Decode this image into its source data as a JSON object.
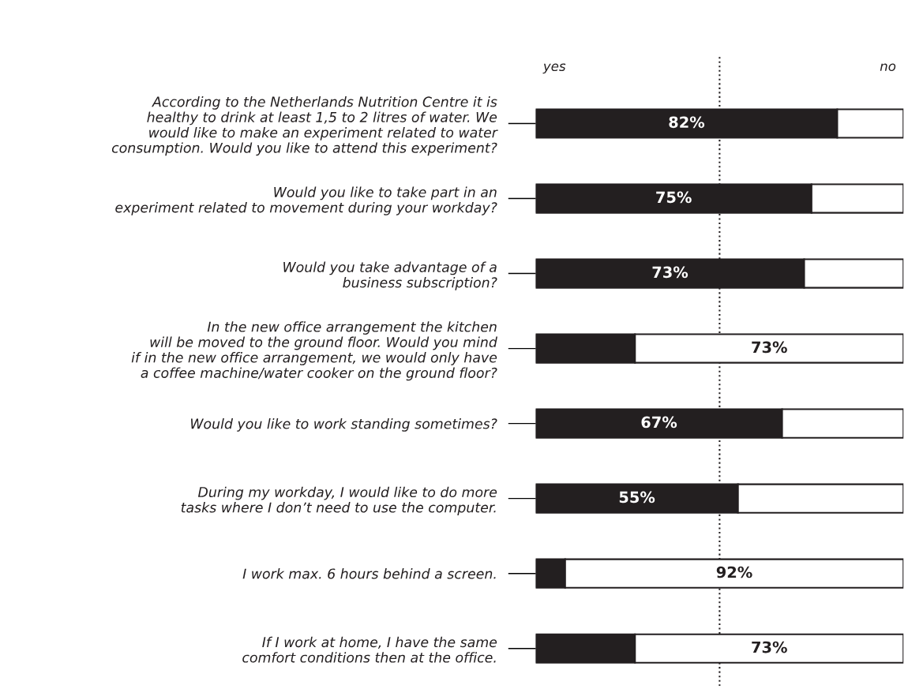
{
  "chart_data": {
    "type": "bar",
    "orientation": "horizontal",
    "stacked": true,
    "categories": [
      "According to the Netherlands Nutrition Centre it is\nhealthy to drink at least 1,5 to 2 litres of water. We\nwould like to make an experiment related to water\nconsumption. Would you like to attend this experiment?",
      "Would you like to take part in an\nexperiment related to movement during your workday?",
      "Would you take advantage of a\nbusiness subscription?",
      "In the new office arrangement the kitchen\nwill be moved to the ground floor. Would you mind\nif in the new office arrangement, we would only have\na coffee machine/water cooker on the ground floor?",
      "Would you like to work standing sometimes?",
      "During my workday, I would like to do more\ntasks where I don’t need to use the computer.",
      "I work max. 6 hours behind a screen.",
      "If I work at home, I have the same\ncomfort conditions then at the office."
    ],
    "series": [
      {
        "name": "yes",
        "color": "#231f20",
        "values": [
          82,
          75,
          73,
          27,
          67,
          55,
          8,
          27
        ],
        "value_labels": [
          "82%",
          "75%",
          "73%",
          null,
          "67%",
          "55%",
          null,
          null
        ]
      },
      {
        "name": "no",
        "color": "#ffffff",
        "values": [
          18,
          25,
          27,
          73,
          33,
          45,
          92,
          73
        ],
        "value_labels": [
          null,
          null,
          null,
          "73%",
          null,
          null,
          "92%",
          "73%"
        ]
      }
    ],
    "xlim": [
      0,
      100
    ],
    "tick_labels": "y",
    "legend": "top",
    "grid": false,
    "ref_lines": [
      {
        "axis": "x",
        "value": 50,
        "line_style": "dotted",
        "color": "#231f20"
      }
    ]
  }
}
